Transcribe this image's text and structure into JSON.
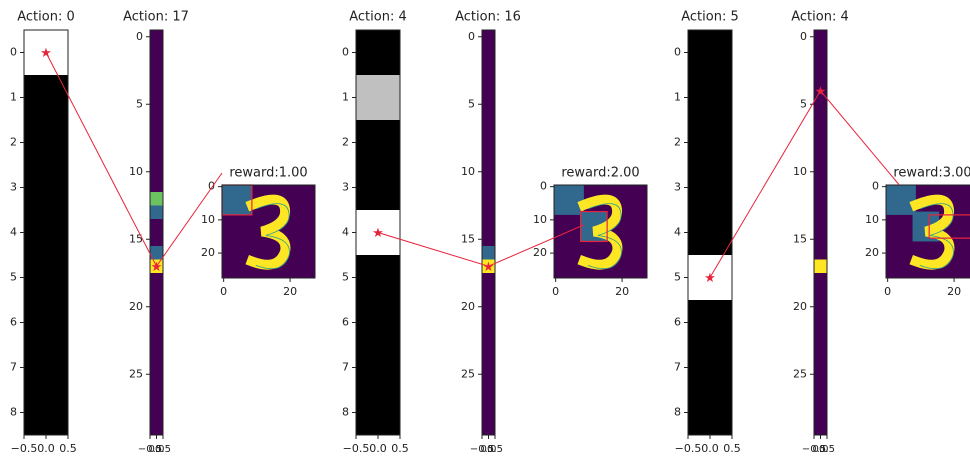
{
  "groups": [
    {
      "action_panel": {
        "title": "Action: 0",
        "yticks": [
          "0",
          "1",
          "2",
          "3",
          "4",
          "5",
          "6",
          "7",
          "8"
        ],
        "xticks": [
          "−0.5",
          "0.0",
          "0.5"
        ]
      },
      "state_panel": {
        "title": "Action: 17",
        "yticks": [
          "0",
          "5",
          "10",
          "15",
          "20",
          "25"
        ],
        "xticks": [
          "−0.5",
          "0.0",
          "0.5"
        ]
      },
      "reward_panel": {
        "title": "reward:1.00",
        "yticks": [
          "0",
          "10",
          "20"
        ],
        "xticks": [
          "0",
          "20"
        ]
      }
    },
    {
      "action_panel": {
        "title": "Action: 4",
        "yticks": [
          "0",
          "1",
          "2",
          "3",
          "4",
          "5",
          "6",
          "7",
          "8"
        ],
        "xticks": [
          "−0.5",
          "0.0",
          "0.5"
        ]
      },
      "state_panel": {
        "title": "Action: 16",
        "yticks": [
          "0",
          "5",
          "10",
          "15",
          "20",
          "25"
        ],
        "xticks": [
          "−0.5",
          "0.0",
          "0.5"
        ]
      },
      "reward_panel": {
        "title": "reward:2.00",
        "yticks": [
          "0",
          "10",
          "20"
        ],
        "xticks": [
          "0",
          "20"
        ]
      }
    },
    {
      "action_panel": {
        "title": "Action: 5",
        "yticks": [
          "0",
          "1",
          "2",
          "3",
          "4",
          "5",
          "6",
          "7",
          "8"
        ],
        "xticks": [
          "−0.5",
          "0.0",
          "0.5"
        ]
      },
      "state_panel": {
        "title": "Action: 4",
        "yticks": [
          "0",
          "5",
          "10",
          "15",
          "20",
          "25"
        ],
        "xticks": [
          "−0.5",
          "0.0",
          "0.5"
        ]
      },
      "reward_panel": {
        "title": "reward:3.00",
        "yticks": [
          "0",
          "10",
          "20"
        ],
        "xticks": [
          "0",
          "20"
        ]
      }
    }
  ]
}
